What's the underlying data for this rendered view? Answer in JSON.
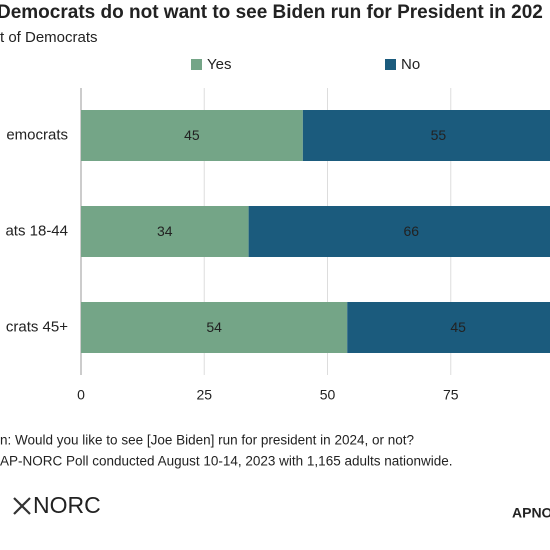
{
  "chart_data": {
    "type": "stacked-barh",
    "title": "Democrats do not want to see Biden run for President in 202",
    "subtitle": "t of Democrats",
    "categories": [
      "emocrats",
      "ats 18-44",
      "crats 45+"
    ],
    "series": [
      {
        "name": "Yes",
        "color": "#74a587",
        "values": [
          45,
          34,
          54
        ]
      },
      {
        "name": "No",
        "color": "#1b5b7d",
        "values": [
          55,
          66,
          45
        ]
      }
    ],
    "xlim": [
      0,
      100
    ],
    "xticks": [
      0,
      25,
      50,
      75
    ],
    "notes": [
      "n: Would you like to see [Joe Biden] run for president in 2024, or not?",
      "AP-NORC Poll conducted August 10-14, 2023 with 1,165 adults nationwide."
    ],
    "logo": "NORC",
    "brand": "APNO"
  }
}
